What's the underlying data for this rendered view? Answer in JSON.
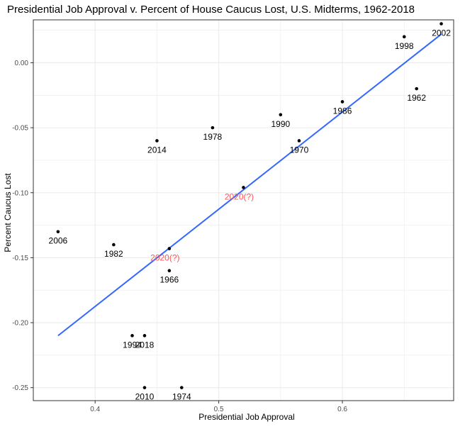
{
  "chart_data": {
    "type": "scatter",
    "title": "Presidential Job Approval v. Percent of House Caucus Lost, U.S. Midterms, 1962-2018",
    "xlabel": "Presidential Job Approval",
    "ylabel": "Percent Caucus Lost",
    "xlim": [
      0.35,
      0.69
    ],
    "ylim": [
      -0.26,
      0.033
    ],
    "x_ticks": [
      0.4,
      0.5,
      0.6
    ],
    "x_tick_labels": [
      "0.4",
      "0.5",
      "0.6"
    ],
    "y_ticks": [
      0.0,
      -0.05,
      -0.1,
      -0.15,
      -0.2,
      -0.25
    ],
    "y_tick_labels": [
      "0.00",
      "-0.05",
      "-0.10",
      "-0.15",
      "-0.20",
      "-0.25"
    ],
    "grid": true,
    "points": [
      {
        "label": "2002",
        "x": 0.68,
        "y": 0.03
      },
      {
        "label": "1998",
        "x": 0.65,
        "y": 0.02
      },
      {
        "label": "1962",
        "x": 0.66,
        "y": -0.02
      },
      {
        "label": "1986",
        "x": 0.6,
        "y": -0.03
      },
      {
        "label": "1990",
        "x": 0.55,
        "y": -0.04
      },
      {
        "label": "1970",
        "x": 0.565,
        "y": -0.06
      },
      {
        "label": "1978",
        "x": 0.495,
        "y": -0.05
      },
      {
        "label": "2014",
        "x": 0.45,
        "y": -0.06
      },
      {
        "label": "2006",
        "x": 0.37,
        "y": -0.13
      },
      {
        "label": "1982",
        "x": 0.415,
        "y": -0.14
      },
      {
        "label": "1966",
        "x": 0.46,
        "y": -0.16
      },
      {
        "label": "1994",
        "x": 0.43,
        "y": -0.21
      },
      {
        "label": "2018",
        "x": 0.44,
        "y": -0.21
      },
      {
        "label": "2010",
        "x": 0.44,
        "y": -0.25
      },
      {
        "label": "1974",
        "x": 0.47,
        "y": -0.25
      }
    ],
    "projected_points": [
      {
        "label": "2020(?)",
        "x": 0.52,
        "y": -0.096
      },
      {
        "label": "2020(?)",
        "x": 0.46,
        "y": -0.143
      }
    ],
    "fit_line": {
      "x": [
        0.37,
        0.68
      ],
      "y": [
        -0.21,
        0.022
      ]
    },
    "colors": {
      "point": "#000000",
      "projected_label": "#ff5555",
      "fit_line": "#3366ff",
      "grid": "#ebebeb",
      "panel_border": "#333333"
    }
  }
}
